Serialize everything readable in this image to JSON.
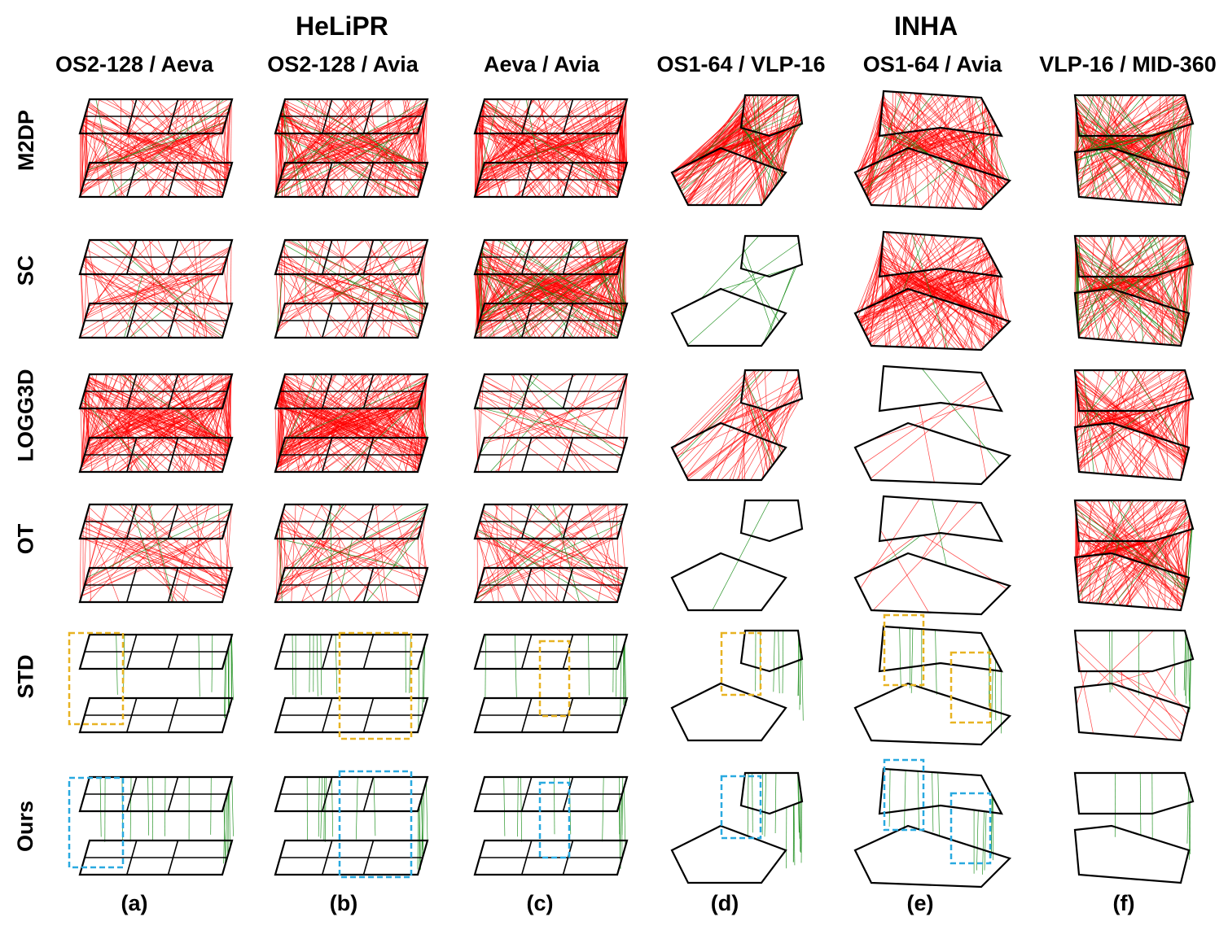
{
  "figure": {
    "group_titles": [
      "HeLiPR",
      "INHA"
    ],
    "columns": [
      "OS2-128 / Aeva",
      "OS2-128 / Avia",
      "Aeva / Avia",
      "OS1-64 / VLP-16",
      "OS1-64 / Avia",
      "VLP-16 / MID-360"
    ],
    "rows": [
      "M2DP",
      "SC",
      "LOGG3D",
      "OT",
      "STD",
      "Ours"
    ],
    "column_letters": [
      "(a)",
      "(b)",
      "(c)",
      "(d)",
      "(e)",
      "(f)"
    ]
  },
  "colors": {
    "trajectory": "#000000",
    "false_match": "#ff0000",
    "true_match": "#138a13",
    "std_box": "#e8b322",
    "ours_box": "#29a9e0"
  },
  "match_density": [
    [
      {
        "red": 120,
        "green": 4
      },
      {
        "red": 170,
        "green": 12
      },
      {
        "red": 200,
        "green": 4
      },
      {
        "red": 170,
        "green": 14
      },
      {
        "red": 190,
        "green": 10
      },
      {
        "red": 190,
        "green": 30
      }
    ],
    [
      {
        "red": 60,
        "green": 3
      },
      {
        "red": 70,
        "green": 10
      },
      {
        "red": 220,
        "green": 30
      },
      {
        "red": 0,
        "green": 8
      },
      {
        "red": 200,
        "green": 2
      },
      {
        "red": 160,
        "green": 30
      }
    ],
    [
      {
        "red": 200,
        "green": 2
      },
      {
        "red": 230,
        "green": 4
      },
      {
        "red": 35,
        "green": 4
      },
      {
        "red": 60,
        "green": 3
      },
      {
        "red": 5,
        "green": 1
      },
      {
        "red": 150,
        "green": 6
      }
    ],
    [
      {
        "red": 60,
        "green": 3
      },
      {
        "red": 60,
        "green": 8
      },
      {
        "red": 60,
        "green": 6
      },
      {
        "red": 0,
        "green": 1
      },
      {
        "red": 6,
        "green": 2
      },
      {
        "red": 170,
        "green": 10
      }
    ],
    [
      {
        "red": 0,
        "green": 12
      },
      {
        "red": 0,
        "green": 12
      },
      {
        "red": 0,
        "green": 10
      },
      {
        "red": 0,
        "green": 10
      },
      {
        "red": 0,
        "green": 10
      },
      {
        "red": 12,
        "green": 10
      }
    ],
    [
      {
        "red": 0,
        "green": 16
      },
      {
        "red": 0,
        "green": 16
      },
      {
        "red": 0,
        "green": 12
      },
      {
        "red": 0,
        "green": 14
      },
      {
        "red": 0,
        "green": 12
      },
      {
        "red": 0,
        "green": 6
      }
    ]
  ]
}
